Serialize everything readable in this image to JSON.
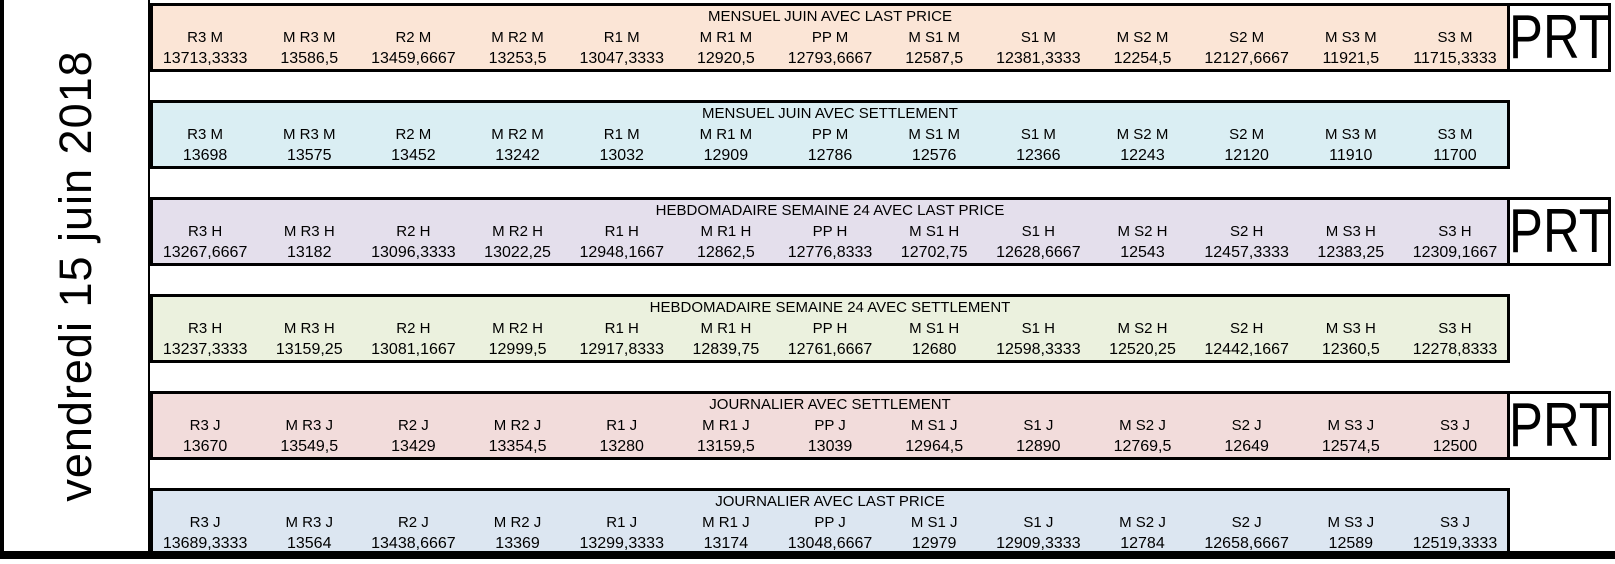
{
  "date_label": "vendredi 15 juin 2018",
  "prt_label": "PRT",
  "colors": {
    "border": "#000000",
    "background": "#FFFFFF",
    "band_mensuel_last_price": "#FBE5D6",
    "band_mensuel_settlement": "#DAEEF3",
    "band_hebdo_last_price": "#E4DFEC",
    "band_hebdo_settlement": "#EBF1DE",
    "band_journalier_settlement": "#F2DCDB",
    "band_journalier_last_price": "#DCE6F1"
  },
  "bands": [
    {
      "title": "MENSUEL JUIN AVEC LAST PRICE",
      "color": "#FBE5D6",
      "prt": true,
      "columns": [
        "R3 M",
        "M R3 M",
        "R2 M",
        "M R2 M",
        "R1 M",
        "M R1 M",
        "PP M",
        "M S1 M",
        "S1 M",
        "M S2 M",
        "S2 M",
        "M S3 M",
        "S3 M"
      ],
      "values": [
        "13713,3333",
        "13586,5",
        "13459,6667",
        "13253,5",
        "13047,3333",
        "12920,5",
        "12793,6667",
        "12587,5",
        "12381,3333",
        "12254,5",
        "12127,6667",
        "11921,5",
        "11715,3333"
      ]
    },
    {
      "title": "MENSUEL JUIN AVEC SETTLEMENT",
      "color": "#DAEEF3",
      "prt": false,
      "columns": [
        "R3 M",
        "M R3 M",
        "R2 M",
        "M R2 M",
        "R1 M",
        "M R1 M",
        "PP M",
        "M S1 M",
        "S1 M",
        "M S2 M",
        "S2 M",
        "M S3 M",
        "S3 M"
      ],
      "values": [
        "13698",
        "13575",
        "13452",
        "13242",
        "13032",
        "12909",
        "12786",
        "12576",
        "12366",
        "12243",
        "12120",
        "11910",
        "11700"
      ]
    },
    {
      "title": "HEBDOMADAIRE SEMAINE 24 AVEC LAST PRICE",
      "color": "#E4DFEC",
      "prt": true,
      "columns": [
        "R3 H",
        "M R3 H",
        "R2 H",
        "M R2 H",
        "R1 H",
        "M R1 H",
        "PP H",
        "M S1 H",
        "S1 H",
        "M S2 H",
        "S2 H",
        "M S3 H",
        "S3 H"
      ],
      "values": [
        "13267,6667",
        "13182",
        "13096,3333",
        "13022,25",
        "12948,1667",
        "12862,5",
        "12776,8333",
        "12702,75",
        "12628,6667",
        "12543",
        "12457,3333",
        "12383,25",
        "12309,1667"
      ]
    },
    {
      "title": "HEBDOMADAIRE SEMAINE 24 AVEC SETTLEMENT",
      "color": "#EBF1DE",
      "prt": false,
      "columns": [
        "R3 H",
        "M R3 H",
        "R2 H",
        "M R2 H",
        "R1 H",
        "M R1 H",
        "PP H",
        "M S1 H",
        "S1 H",
        "M S2 H",
        "S2 H",
        "M S3 H",
        "S3 H"
      ],
      "values": [
        "13237,3333",
        "13159,25",
        "13081,1667",
        "12999,5",
        "12917,8333",
        "12839,75",
        "12761,6667",
        "12680",
        "12598,3333",
        "12520,25",
        "12442,1667",
        "12360,5",
        "12278,8333"
      ]
    },
    {
      "title": "JOURNALIER AVEC SETTLEMENT",
      "color": "#F2DCDB",
      "prt": true,
      "columns": [
        "R3 J",
        "M R3 J",
        "R2 J",
        "M R2 J",
        "R1 J",
        "M R1 J",
        "PP J",
        "M S1 J",
        "S1 J",
        "M S2 J",
        "S2 J",
        "M S3 J",
        "S3 J"
      ],
      "values": [
        "13670",
        "13549,5",
        "13429",
        "13354,5",
        "13280",
        "13159,5",
        "13039",
        "12964,5",
        "12890",
        "12769,5",
        "12649",
        "12574,5",
        "12500"
      ]
    },
    {
      "title": "JOURNALIER AVEC LAST PRICE",
      "color": "#DCE6F1",
      "prt": false,
      "columns": [
        "R3 J",
        "M R3 J",
        "R2 J",
        "M R2 J",
        "R1 J",
        "M R1 J",
        "PP J",
        "M S1 J",
        "S1 J",
        "M S2 J",
        "S2 J",
        "M S3 J",
        "S3 J"
      ],
      "values": [
        "13689,3333",
        "13564",
        "13438,6667",
        "13369",
        "13299,3333",
        "13174",
        "13048,6667",
        "12979",
        "12909,3333",
        "12784",
        "12658,6667",
        "12589",
        "12519,3333"
      ]
    }
  ]
}
